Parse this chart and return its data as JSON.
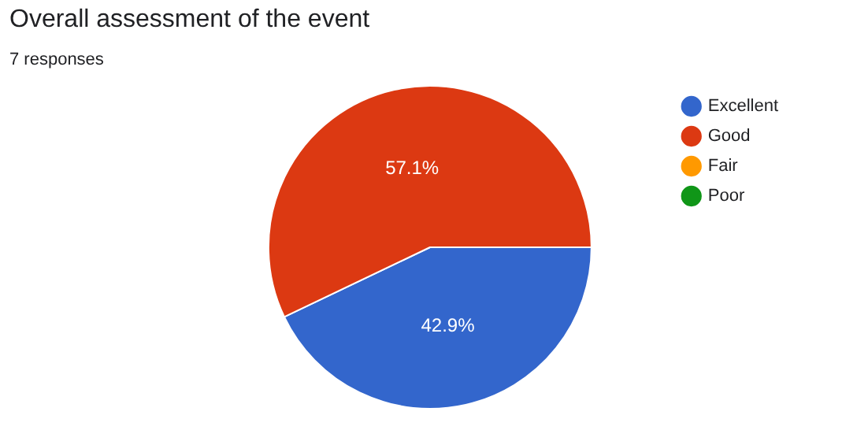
{
  "chart_data": {
    "type": "pie",
    "title": "Overall assessment of the event",
    "subtitle": "7 responses",
    "categories": [
      "Excellent",
      "Good",
      "Fair",
      "Poor"
    ],
    "values": [
      42.9,
      57.1,
      0,
      0
    ],
    "colors": [
      "#3366cc",
      "#dc3912",
      "#ff9900",
      "#109618"
    ],
    "value_labels": [
      "42.9%",
      "57.1%",
      null,
      null
    ],
    "legend": "right"
  }
}
